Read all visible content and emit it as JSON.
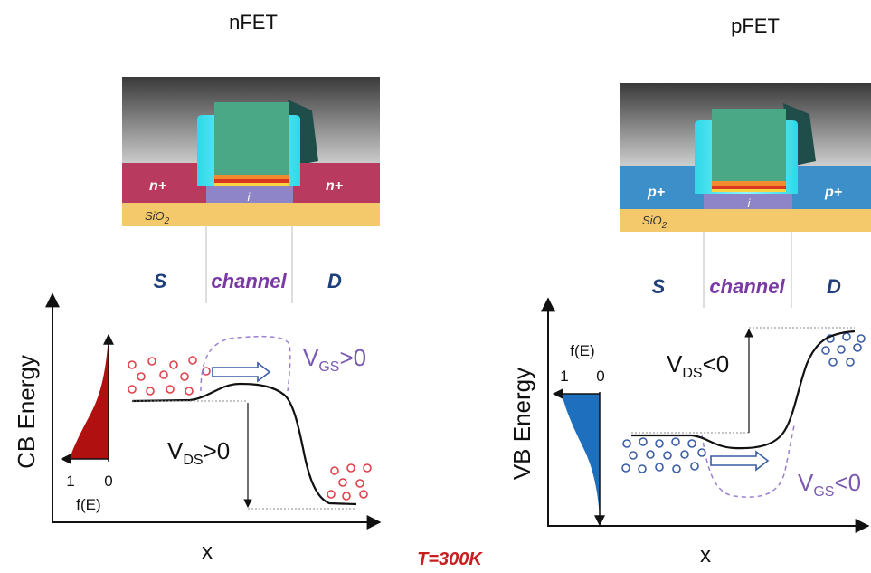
{
  "nfet": {
    "title": "nFET",
    "doping_left": "n+",
    "doping_right": "n+",
    "oxide_base": "SiO",
    "oxide_sub": "2",
    "intrinsic": "i",
    "source": "S",
    "channel": "channel",
    "drain": "D",
    "ylabel": "CB Energy",
    "xlabel": "x",
    "fermi_label": "f(E)",
    "fermi_tick_1": "1",
    "fermi_tick_0": "0",
    "vgs_base": "V",
    "vgs_sub": "GS",
    "vgs_rel": ">0",
    "vds_base": "V",
    "vds_sub": "DS",
    "vds_rel": ">0"
  },
  "pfet": {
    "title": "pFET",
    "doping_left": "p+",
    "doping_right": "p+",
    "oxide_base": "SiO",
    "oxide_sub": "2",
    "intrinsic": "i",
    "source": "S",
    "channel": "channel",
    "drain": "D",
    "ylabel": "VB Energy",
    "xlabel": "x",
    "fermi_label": "f(E)",
    "fermi_tick_1": "1",
    "fermi_tick_0": "0",
    "vgs_base": "V",
    "vgs_sub": "GS",
    "vgs_rel": "<0",
    "vds_base": "V",
    "vds_sub": "DS",
    "vds_rel": "<0"
  },
  "temperature": "T=300K",
  "colors": {
    "n_doping": "#b83a5e",
    "p_doping": "#3d8fc9",
    "oxide": "#f4c96b",
    "gate": "#4aa887",
    "spacer": "#5ff0f8",
    "intrinsic": "#8e84c8",
    "channel_text": "#7a3aa6",
    "sd_text": "#1f3f7a",
    "electron": "#e0404a",
    "hole": "#3a5da6",
    "n_fermi_fill": "#b01010",
    "p_fermi_fill": "#1f6fbf",
    "dashed": "#9a7fd0",
    "temperature": "#c81e1e"
  }
}
